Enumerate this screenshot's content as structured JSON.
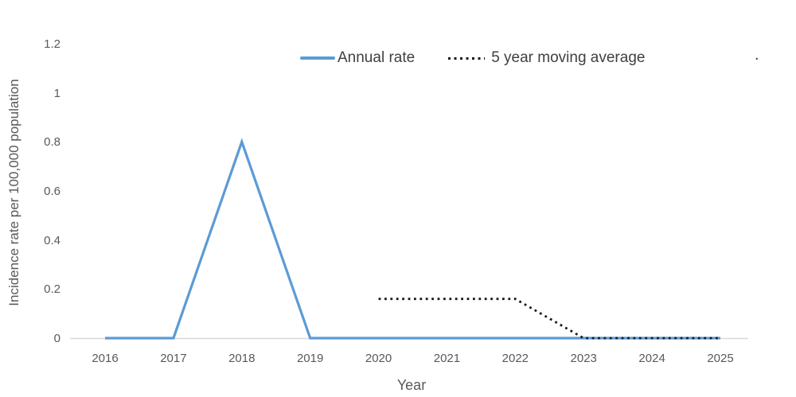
{
  "window": {
    "background": "#FFFFFF"
  },
  "colors": {
    "annual_rate_line": "#5B9BD5",
    "moving_average_line": "#1A1A1A",
    "axis_line": "#D9D9D9",
    "tick_text": "#595959",
    "legend_text": "#404040"
  },
  "legend": {
    "items": [
      {
        "label": "Annual rate",
        "marker": "solid-line"
      },
      {
        "label": "5 year moving average",
        "marker": "dotted-line"
      }
    ],
    "stray_dot": "."
  },
  "chart_data": {
    "type": "line",
    "x": [
      2016,
      2017,
      2018,
      2019,
      2020,
      2021,
      2022,
      2023,
      2024,
      2025
    ],
    "xlabel": "Year",
    "ylabel": "Incidence rate per 100,000 population",
    "ylim": [
      0,
      1.2
    ],
    "yticks": [
      0,
      0.2,
      0.4,
      0.6,
      0.8,
      1,
      1.2
    ],
    "ytick_labels": [
      "0",
      "0.2",
      "0.4",
      "0.6",
      "0.8",
      "1",
      "1.2"
    ],
    "grid": false,
    "legend_position": "top-center",
    "series": [
      {
        "name": "Annual rate",
        "style": "solid",
        "color_key": "annual_rate_line",
        "values": [
          0,
          0,
          0.8,
          0,
          0,
          0,
          0,
          0,
          0,
          0
        ]
      },
      {
        "name": "5 year moving average",
        "style": "dotted",
        "color_key": "moving_average_line",
        "values": [
          null,
          null,
          null,
          null,
          0.16,
          0.16,
          0.16,
          0,
          0,
          0
        ]
      }
    ]
  }
}
